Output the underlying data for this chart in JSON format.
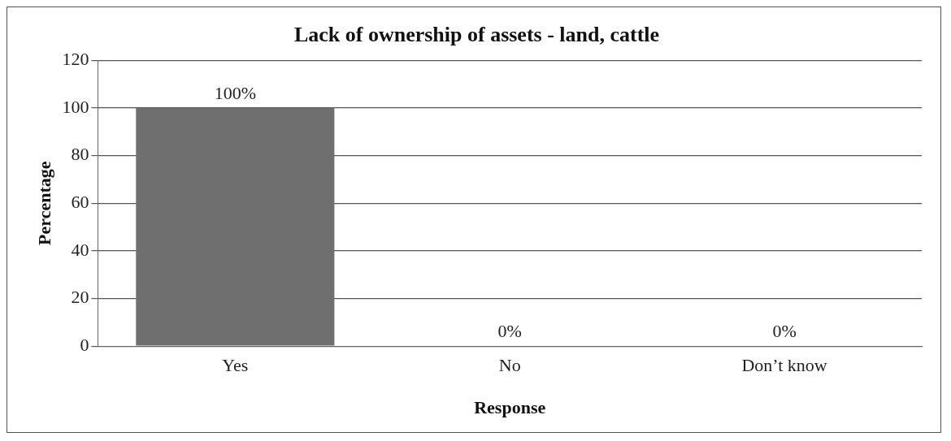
{
  "chart_data": {
    "type": "bar",
    "title": "Lack of ownership of assets - land, cattle",
    "xlabel": "Response",
    "ylabel": "Percentage",
    "categories": [
      "Yes",
      "No",
      "Don’t know"
    ],
    "values": [
      100,
      0,
      0
    ],
    "value_labels": [
      "100%",
      "0%",
      "0%"
    ],
    "color": "#6f6f6f",
    "ylim": [
      0,
      120
    ],
    "yticks": [
      0,
      20,
      40,
      60,
      80,
      100,
      120
    ],
    "grid": "y",
    "legend": false
  }
}
